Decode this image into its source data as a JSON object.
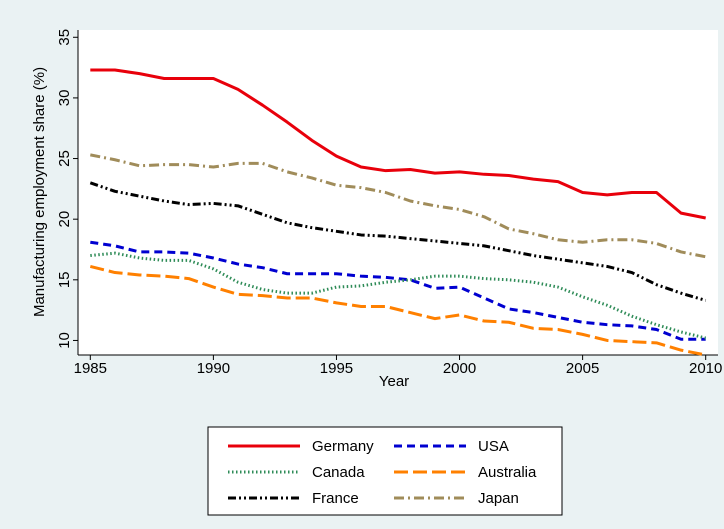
{
  "chart_data": {
    "type": "line",
    "xlabel": "Year",
    "ylabel": "Manufacturing employment share (%)",
    "x": [
      1985,
      1986,
      1987,
      1988,
      1989,
      1990,
      1991,
      1992,
      1993,
      1994,
      1995,
      1996,
      1997,
      1998,
      1999,
      2000,
      2001,
      2002,
      2003,
      2004,
      2005,
      2006,
      2007,
      2008,
      2009,
      2010
    ],
    "xlim": [
      1984.5,
      2010.5
    ],
    "xticks": [
      1985,
      1990,
      1995,
      2000,
      2005,
      2010
    ],
    "ylim": [
      8.8,
      35.6
    ],
    "yticks": [
      10,
      15,
      20,
      25,
      30,
      35
    ],
    "grid": false,
    "legend": "bottom",
    "series": [
      {
        "name": "Germany",
        "color": "#e8000b",
        "dash": "solid",
        "values": [
          32.3,
          32.3,
          32.0,
          31.6,
          31.6,
          31.6,
          30.7,
          29.4,
          28.0,
          26.5,
          25.2,
          24.3,
          24.0,
          24.1,
          23.8,
          23.9,
          23.7,
          23.6,
          23.3,
          23.1,
          22.2,
          22.0,
          22.2,
          22.2,
          20.5,
          20.1
        ]
      },
      {
        "name": "USA",
        "color": "#0000d0",
        "dash": "dash",
        "values": [
          18.1,
          17.8,
          17.3,
          17.3,
          17.2,
          16.8,
          16.3,
          16.0,
          15.5,
          15.5,
          15.5,
          15.3,
          15.2,
          15.0,
          14.3,
          14.4,
          13.5,
          12.6,
          12.3,
          11.9,
          11.5,
          11.3,
          11.2,
          10.9,
          10.1,
          10.1
        ]
      },
      {
        "name": "Canada",
        "color": "#2e8b57",
        "dash": "dot",
        "values": [
          17.0,
          17.2,
          16.8,
          16.6,
          16.6,
          15.9,
          14.8,
          14.2,
          13.9,
          13.9,
          14.4,
          14.5,
          14.8,
          15.0,
          15.3,
          15.3,
          15.1,
          15.0,
          14.8,
          14.4,
          13.6,
          12.9,
          12.0,
          11.3,
          10.7,
          10.2
        ]
      },
      {
        "name": "Australia",
        "color": "#ff8000",
        "dash": "longdash",
        "values": [
          16.1,
          15.6,
          15.4,
          15.3,
          15.1,
          14.4,
          13.8,
          13.7,
          13.5,
          13.5,
          13.1,
          12.8,
          12.8,
          12.3,
          11.8,
          12.1,
          11.6,
          11.5,
          11.0,
          10.9,
          10.5,
          10.0,
          9.9,
          9.8,
          9.2,
          8.8
        ]
      },
      {
        "name": "France",
        "color": "#000000",
        "dash": "dashdotdot",
        "values": [
          23.0,
          22.3,
          21.9,
          21.5,
          21.2,
          21.3,
          21.1,
          20.4,
          19.7,
          19.3,
          19.0,
          18.7,
          18.6,
          18.4,
          18.2,
          18.0,
          17.8,
          17.4,
          17.0,
          16.7,
          16.4,
          16.1,
          15.6,
          14.6,
          13.9,
          13.3
        ]
      },
      {
        "name": "Japan",
        "color": "#a08c5a",
        "dash": "dashdot",
        "values": [
          25.3,
          24.9,
          24.4,
          24.5,
          24.5,
          24.3,
          24.6,
          24.6,
          23.9,
          23.4,
          22.8,
          22.6,
          22.2,
          21.5,
          21.1,
          20.8,
          20.2,
          19.2,
          18.8,
          18.3,
          18.1,
          18.3,
          18.3,
          18.0,
          17.3,
          16.9
        ]
      }
    ]
  }
}
